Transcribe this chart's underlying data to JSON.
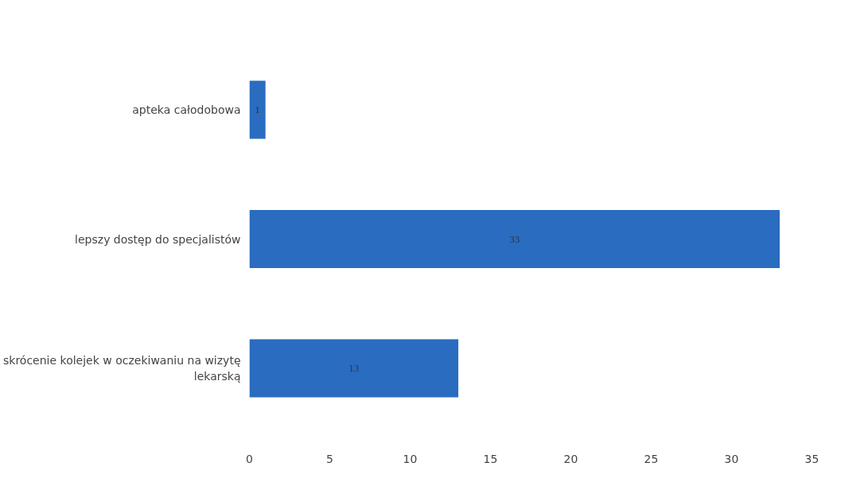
{
  "chart_data": {
    "type": "bar",
    "orientation": "horizontal",
    "categories": [
      "apteka całodobowa",
      "lepszy dostęp do specjalistów",
      "skrócenie kolejek w oczekiwaniu na wizytę lekarską"
    ],
    "values": [
      1,
      33,
      13
    ],
    "color": "#2a6cc0",
    "data_labels": true,
    "xlim": [
      0,
      35
    ],
    "xticks": [
      0,
      5,
      10,
      15,
      20,
      25,
      30,
      35
    ],
    "grid": false
  }
}
